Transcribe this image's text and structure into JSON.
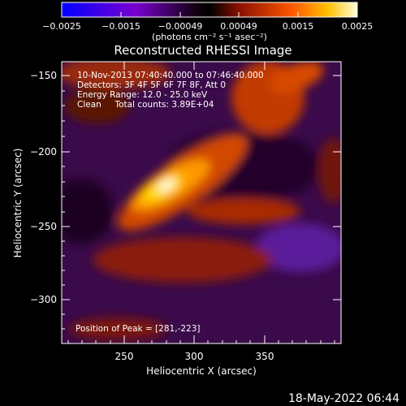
{
  "chart_data": {
    "type": "heatmap",
    "title": "Reconstructed RHESSI Image",
    "xlabel": "Heliocentric X (arcsec)",
    "ylabel": "Heliocentric Y (arcsec)",
    "xlim": [
      210,
      398
    ],
    "ylim": [
      -330,
      -128
    ],
    "xticks": [
      250,
      300,
      350
    ],
    "yticks": [
      -150,
      -200,
      -250,
      -300
    ],
    "colorbar": {
      "range": [
        -0.0025,
        0.0025
      ],
      "ticks": [
        -0.0025,
        -0.0015,
        -0.00049,
        0.00049,
        0.0015,
        0.0025
      ],
      "tick_labels": [
        "−0.0025",
        "−0.0015",
        "−0.00049",
        "0.00049",
        "0.0015",
        "0.0025"
      ],
      "unit_label": "(photons cm⁻² s⁻¹ asec⁻²)"
    },
    "annotations": [
      "10-Nov-2013 07:40:40.000 to 07:46:40.000",
      "Detectors: 3F 4F 5F 6F 7F 8F, Att 0",
      "Energy Range: 12.0 - 25.0 keV",
      "Clean     Total counts: 3.89E+04"
    ],
    "peak_label": "Position of Peak = [281,-223]",
    "peak": {
      "x": 281,
      "y": -223
    }
  },
  "footer_date": "18-May-2022 06:44"
}
